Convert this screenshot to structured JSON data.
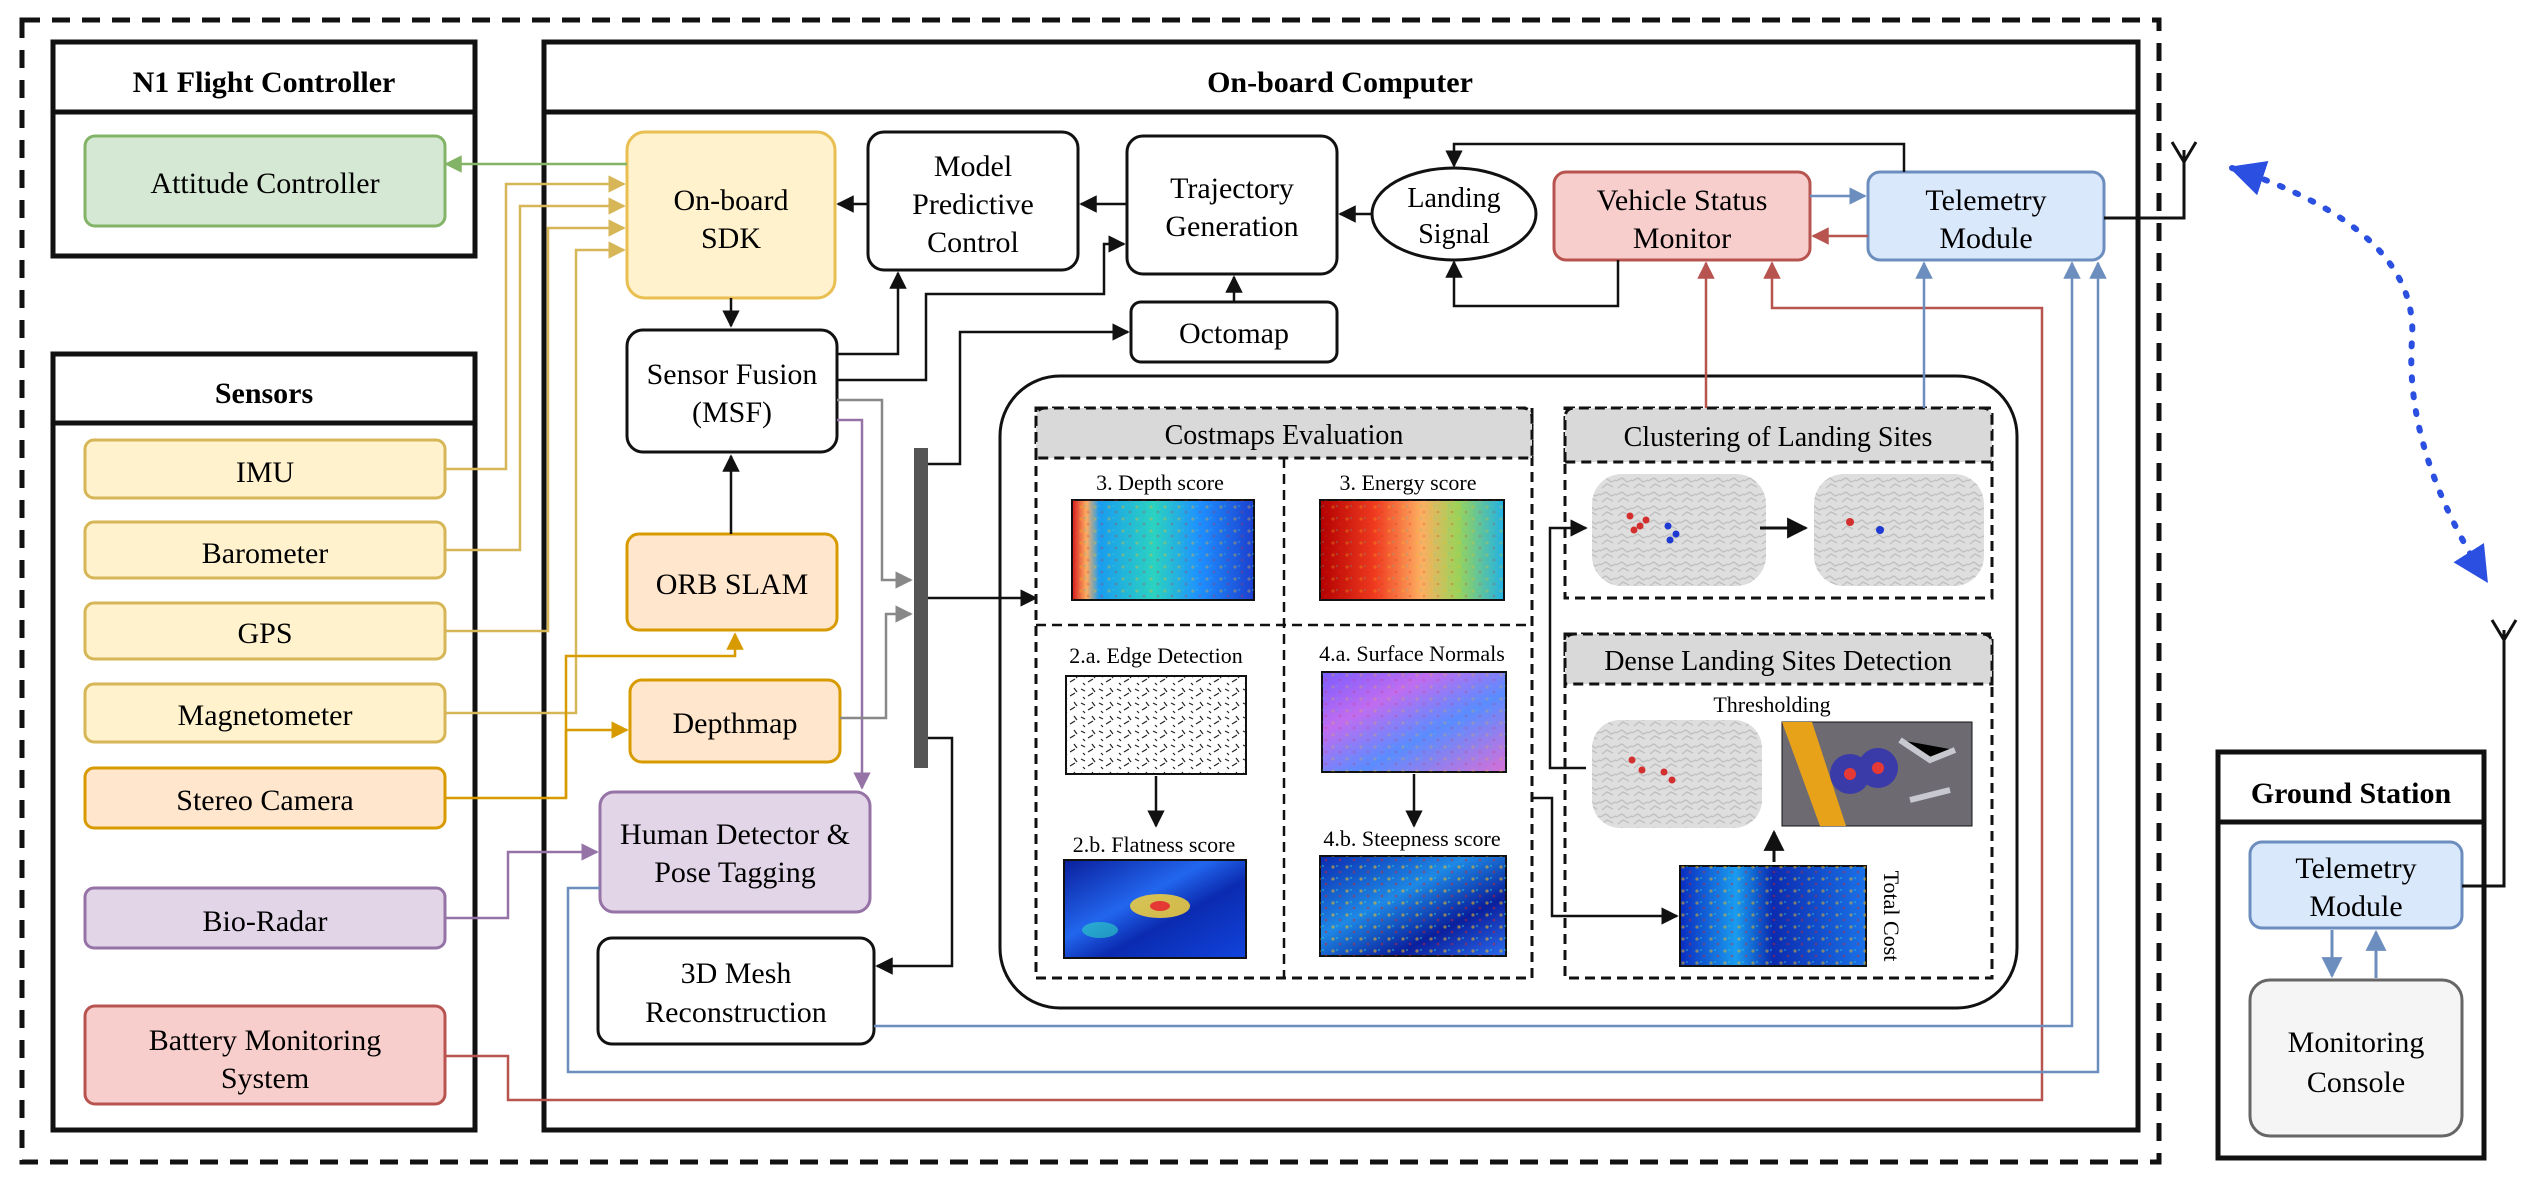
{
  "flight_controller": {
    "title": "N1 Flight Controller",
    "attitude_controller": "Attitude Controller"
  },
  "sensors": {
    "title": "Sensors",
    "items": [
      "IMU",
      "Barometer",
      "GPS",
      "Magnetometer",
      "Stereo Camera",
      "Bio-Radar"
    ],
    "battery": [
      "Battery Monitoring",
      "System"
    ]
  },
  "onboard": {
    "title": "On-board Computer",
    "sdk": [
      "On-board",
      "SDK"
    ],
    "mpc": [
      "Model",
      "Predictive",
      "Control"
    ],
    "trajectory": [
      "Trajectory",
      "Generation"
    ],
    "landing_signal": [
      "Landing",
      "Signal"
    ],
    "vehicle_status": [
      "Vehicle Status",
      "Monitor"
    ],
    "telemetry": [
      "Telemetry",
      "Module"
    ],
    "sensor_fusion": [
      "Sensor Fusion",
      "(MSF)"
    ],
    "octomap": "Octomap",
    "orb_slam": "ORB SLAM",
    "depthmap": "Depthmap",
    "human_detector": [
      "Human Detector &",
      "Pose Tagging"
    ],
    "mesh": [
      "3D Mesh",
      "Reconstruction"
    ]
  },
  "costmaps": {
    "title": "Costmaps Evaluation",
    "depth_score": "3. Depth score",
    "energy_score": "3. Energy score",
    "edge_detection": "2.a. Edge Detection",
    "surface_normals": "4.a. Surface Normals",
    "flatness_score": "2.b. Flatness score",
    "steepness_score": "4.b. Steepness score"
  },
  "clustering": {
    "title": "Clustering of Landing Sites"
  },
  "dense": {
    "title": "Dense Landing Sites Detection",
    "thresholding": "Thresholding",
    "total_cost": "Total Cost"
  },
  "ground_station": {
    "title": "Ground Station",
    "telemetry": [
      "Telemetry",
      "Module"
    ],
    "console": [
      "Monitoring",
      "Console"
    ]
  },
  "colors": {
    "green_fill": "#d5e8d4",
    "green_stroke": "#82b366",
    "yellow_fill": "#fff2cc",
    "yellow_stroke": "#d6b656",
    "sdk_fill": "#fff2cc",
    "sdk_stroke": "#e8bf50",
    "orange_fill": "#ffe6cc",
    "orange_stroke": "#d79b00",
    "purple_fill": "#e1d5e7",
    "purple_stroke": "#9673a6",
    "red_fill": "#f8cecc",
    "red_stroke": "#b85450",
    "blue_fill": "#dae8fc",
    "blue_stroke": "#6c8ebf",
    "gray_fill": "#f5f5f5",
    "gray_stroke": "#666666",
    "header_gray": "#d9d9d9",
    "link_blue": "#2b4fe0"
  }
}
